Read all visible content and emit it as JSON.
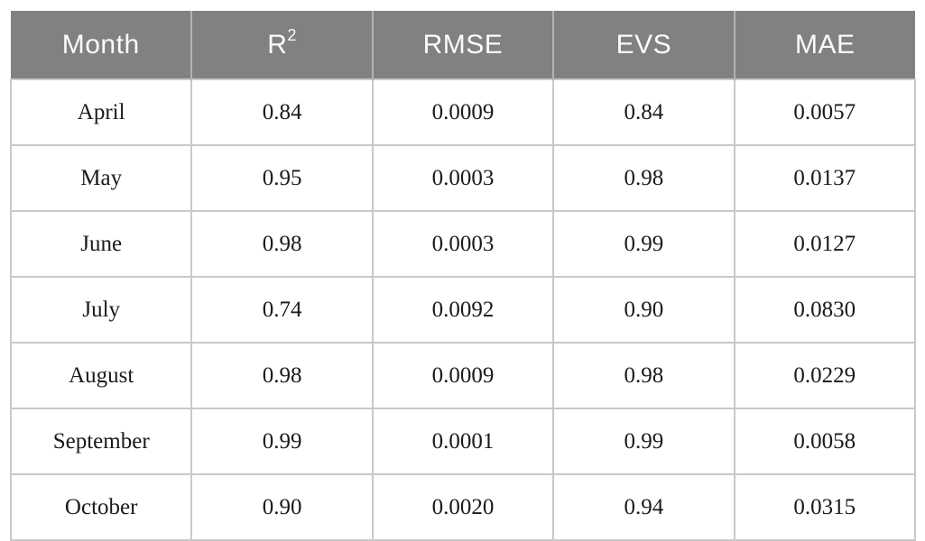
{
  "page": {
    "background_color": "#ffffff"
  },
  "table": {
    "description": "Monthly model performance metrics table",
    "colors": {
      "header_background": "#818181",
      "header_text": "#fbfbfb",
      "header_divider": "#b2b2b2",
      "body_text": "#1a1a1a",
      "grid_line": "#c9c9c9"
    },
    "headers": [
      {
        "label": "Month"
      },
      {
        "label": "R",
        "sup": "2"
      },
      {
        "label": "RMSE"
      },
      {
        "label": "EVS"
      },
      {
        "label": "MAE"
      }
    ],
    "rows": [
      {
        "month": "April",
        "r2": "0.84",
        "rmse": "0.0009",
        "evs": "0.84",
        "mae": "0.0057"
      },
      {
        "month": "May",
        "r2": "0.95",
        "rmse": "0.0003",
        "evs": "0.98",
        "mae": "0.0137"
      },
      {
        "month": "June",
        "r2": "0.98",
        "rmse": "0.0003",
        "evs": "0.99",
        "mae": "0.0127"
      },
      {
        "month": "July",
        "r2": "0.74",
        "rmse": "0.0092",
        "evs": "0.90",
        "mae": "0.0830"
      },
      {
        "month": "August",
        "r2": "0.98",
        "rmse": "0.0009",
        "evs": "0.98",
        "mae": "0.0229"
      },
      {
        "month": "September",
        "r2": "0.99",
        "rmse": "0.0001",
        "evs": "0.99",
        "mae": "0.0058"
      },
      {
        "month": "October",
        "r2": "0.90",
        "rmse": "0.0020",
        "evs": "0.94",
        "mae": "0.0315"
      }
    ]
  }
}
